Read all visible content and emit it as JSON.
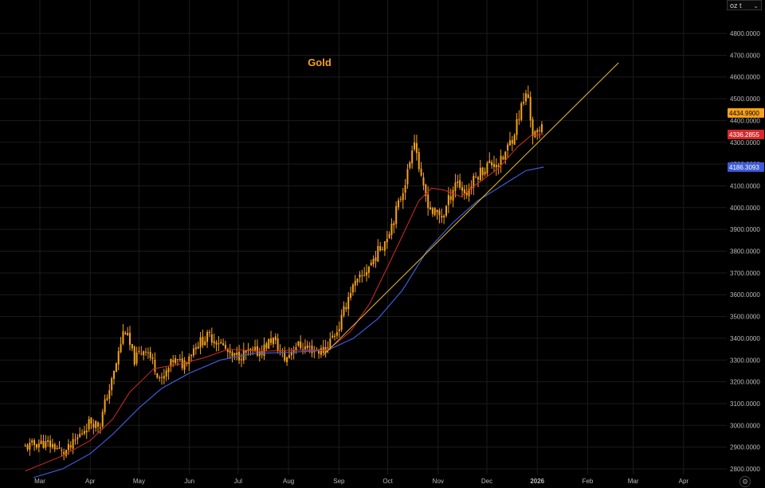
{
  "unit_selector": {
    "value": "oz t",
    "icon": "chevron-down-icon"
  },
  "settings_icon": "gear-icon",
  "chart_data": {
    "type": "candlestick",
    "title": "Gold",
    "colors": {
      "background": "#000000",
      "candle": "#f7a21b",
      "title": "#f7a21b",
      "ma_fast": "#d62a2a",
      "ma_slow": "#3d5bd8",
      "trendline": "#f2c318",
      "grid": "#1b1b1b",
      "axis_text": "#bcbcbc"
    },
    "y_axis": {
      "min": 2760,
      "max": 4950,
      "ticks": [
        "4800.0000",
        "4700.0000",
        "4600.0000",
        "4500.0000",
        "4400.0000",
        "4300.0000",
        "4100.0000",
        "4000.0000",
        "3900.0000",
        "3800.0000",
        "3700.0000",
        "3600.0000",
        "3500.0000",
        "3400.0000",
        "3300.0000",
        "3200.0000",
        "3100.0000",
        "3000.0000",
        "2900.0000",
        "2800.0000"
      ],
      "partially_hidden_ticks": [
        "4200.0000"
      ]
    },
    "x_axis": {
      "labels": [
        "Mar",
        "Apr",
        "May",
        "Jun",
        "Jul",
        "Aug",
        "Sep",
        "Oct",
        "Nov",
        "Dec",
        "2026",
        "Feb",
        "Mar",
        "Apr"
      ],
      "bold_label": "2026"
    },
    "price_labels": [
      {
        "value": "4434.9900",
        "series": "price",
        "color": "#f7a21b"
      },
      {
        "value": "4336.2855",
        "series": "ma_fast",
        "color": "#d62a2a"
      },
      {
        "value": "4186.3093",
        "series": "ma_slow",
        "color": "#3d5bd8"
      }
    ],
    "price_path": [
      [
        "2025-02-20",
        2900
      ],
      [
        "2025-03-01",
        2920
      ],
      [
        "2025-03-10",
        2905
      ],
      [
        "2025-03-15",
        2870
      ],
      [
        "2025-03-20",
        2900
      ],
      [
        "2025-03-25",
        2950
      ],
      [
        "2025-04-01",
        3020
      ],
      [
        "2025-04-07",
        3000
      ],
      [
        "2025-04-10",
        3100
      ],
      [
        "2025-04-15",
        3220
      ],
      [
        "2025-04-22",
        3450
      ],
      [
        "2025-04-28",
        3300
      ],
      [
        "2025-05-05",
        3360
      ],
      [
        "2025-05-10",
        3280
      ],
      [
        "2025-05-15",
        3200
      ],
      [
        "2025-05-22",
        3300
      ],
      [
        "2025-05-28",
        3280
      ],
      [
        "2025-06-05",
        3370
      ],
      [
        "2025-06-13",
        3410
      ],
      [
        "2025-06-20",
        3380
      ],
      [
        "2025-06-27",
        3310
      ],
      [
        "2025-07-05",
        3330
      ],
      [
        "2025-07-15",
        3340
      ],
      [
        "2025-07-22",
        3400
      ],
      [
        "2025-07-30",
        3300
      ],
      [
        "2025-08-05",
        3370
      ],
      [
        "2025-08-15",
        3350
      ],
      [
        "2025-08-22",
        3340
      ],
      [
        "2025-09-01",
        3450
      ],
      [
        "2025-09-08",
        3620
      ],
      [
        "2025-09-15",
        3680
      ],
      [
        "2025-09-22",
        3760
      ],
      [
        "2025-09-30",
        3860
      ],
      [
        "2025-10-07",
        4000
      ],
      [
        "2025-10-14",
        4180
      ],
      [
        "2025-10-17",
        4340
      ],
      [
        "2025-10-22",
        4100
      ],
      [
        "2025-10-28",
        3980
      ],
      [
        "2025-11-04",
        3960
      ],
      [
        "2025-11-12",
        4130
      ],
      [
        "2025-11-18",
        4060
      ],
      [
        "2025-11-25",
        4150
      ],
      [
        "2025-12-02",
        4200
      ],
      [
        "2025-12-10",
        4210
      ],
      [
        "2025-12-17",
        4330
      ],
      [
        "2025-12-23",
        4480
      ],
      [
        "2025-12-26",
        4530
      ],
      [
        "2025-12-29",
        4340
      ],
      [
        "2026-01-02",
        4330
      ],
      [
        "2026-01-05",
        4435
      ]
    ],
    "ma_fast": [
      [
        "2025-02-20",
        2790
      ],
      [
        "2025-03-15",
        2860
      ],
      [
        "2025-04-01",
        2930
      ],
      [
        "2025-04-15",
        3030
      ],
      [
        "2025-04-25",
        3150
      ],
      [
        "2025-05-10",
        3260
      ],
      [
        "2025-05-25",
        3280
      ],
      [
        "2025-06-10",
        3310
      ],
      [
        "2025-06-25",
        3350
      ],
      [
        "2025-07-15",
        3340
      ],
      [
        "2025-08-05",
        3345
      ],
      [
        "2025-08-25",
        3345
      ],
      [
        "2025-09-08",
        3430
      ],
      [
        "2025-09-20",
        3560
      ],
      [
        "2025-10-01",
        3730
      ],
      [
        "2025-10-10",
        3870
      ],
      [
        "2025-10-20",
        4030
      ],
      [
        "2025-10-28",
        4090
      ],
      [
        "2025-11-05",
        4080
      ],
      [
        "2025-11-15",
        4050
      ],
      [
        "2025-11-25",
        4110
      ],
      [
        "2025-12-08",
        4180
      ],
      [
        "2025-12-20",
        4280
      ],
      [
        "2025-12-28",
        4330
      ],
      [
        "2026-01-05",
        4336
      ]
    ],
    "ma_slow": [
      [
        "2025-02-25",
        2760
      ],
      [
        "2025-03-15",
        2800
      ],
      [
        "2025-04-01",
        2870
      ],
      [
        "2025-04-15",
        2960
      ],
      [
        "2025-05-01",
        3080
      ],
      [
        "2025-05-15",
        3170
      ],
      [
        "2025-06-01",
        3240
      ],
      [
        "2025-06-20",
        3300
      ],
      [
        "2025-07-10",
        3330
      ],
      [
        "2025-08-01",
        3335
      ],
      [
        "2025-08-25",
        3345
      ],
      [
        "2025-09-10",
        3400
      ],
      [
        "2025-09-25",
        3490
      ],
      [
        "2025-10-10",
        3620
      ],
      [
        "2025-10-25",
        3800
      ],
      [
        "2025-11-10",
        3930
      ],
      [
        "2025-11-25",
        4030
      ],
      [
        "2025-12-10",
        4100
      ],
      [
        "2025-12-25",
        4170
      ],
      [
        "2026-01-05",
        4186
      ]
    ],
    "trendline": [
      [
        "2025-08-22",
        3320
      ],
      [
        "2026-02-20",
        4665
      ]
    ]
  }
}
